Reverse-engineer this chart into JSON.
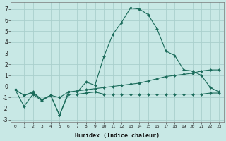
{
  "xlabel": "Humidex (Indice chaleur)",
  "background_color": "#c8e8e5",
  "grid_color": "#aacfcc",
  "line_color": "#1a6b5a",
  "x_values": [
    0,
    1,
    2,
    3,
    4,
    5,
    6,
    7,
    8,
    9,
    10,
    11,
    12,
    13,
    14,
    15,
    16,
    17,
    18,
    19,
    20,
    21,
    22,
    23
  ],
  "series1": [
    -0.3,
    -1.8,
    -0.7,
    -1.3,
    -0.8,
    -2.6,
    -0.5,
    -0.5,
    0.4,
    0.1,
    2.7,
    4.7,
    5.8,
    7.1,
    7.0,
    6.5,
    5.2,
    3.2,
    2.8,
    1.5,
    1.4,
    1.0,
    -0.1,
    -0.5
  ],
  "series2": [
    -0.3,
    -0.8,
    -0.5,
    -1.2,
    -0.8,
    -1.0,
    -0.5,
    -0.4,
    -0.3,
    -0.2,
    -0.1,
    0.0,
    0.1,
    0.2,
    0.3,
    0.5,
    0.7,
    0.9,
    1.0,
    1.1,
    1.2,
    1.4,
    1.5,
    1.5
  ],
  "series3": [
    -0.3,
    -0.8,
    -0.6,
    -1.2,
    -0.8,
    -2.6,
    -0.7,
    -0.7,
    -0.6,
    -0.5,
    -0.7,
    -0.7,
    -0.7,
    -0.7,
    -0.7,
    -0.7,
    -0.7,
    -0.7,
    -0.7,
    -0.7,
    -0.7,
    -0.7,
    -0.6,
    -0.6
  ],
  "ylim": [
    -3.2,
    7.6
  ],
  "xlim": [
    -0.5,
    23.5
  ],
  "yticks": [
    -3,
    -2,
    -1,
    0,
    1,
    2,
    3,
    4,
    5,
    6,
    7
  ],
  "xticks": [
    0,
    1,
    2,
    3,
    4,
    5,
    6,
    7,
    8,
    9,
    10,
    11,
    12,
    13,
    14,
    15,
    16,
    17,
    18,
    19,
    20,
    21,
    22,
    23
  ]
}
